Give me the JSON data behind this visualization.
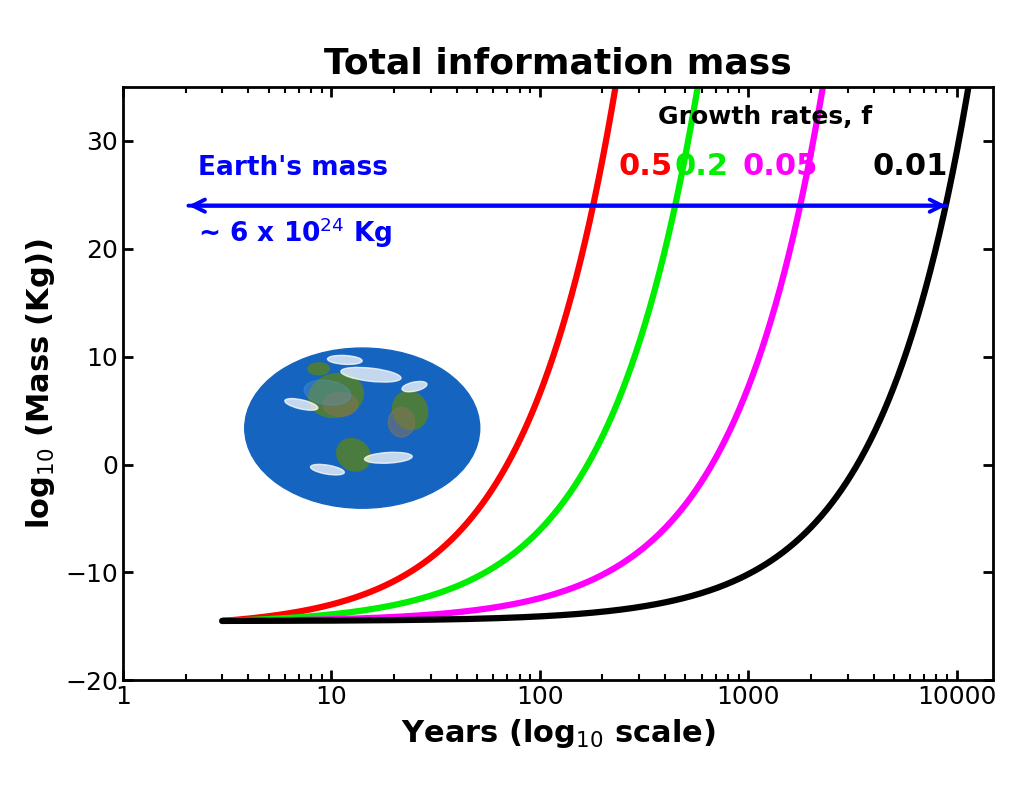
{
  "title": "Total information mass",
  "xlim": [
    1,
    15000
  ],
  "ylim": [
    -20,
    35
  ],
  "yticks": [
    -20,
    -10,
    0,
    10,
    20,
    30
  ],
  "xticks": [
    1,
    10,
    100,
    1000,
    10000
  ],
  "growth_rates": [
    0.5,
    0.2,
    0.05,
    0.01
  ],
  "colors": [
    "red",
    "#00ee00",
    "magenta",
    "#000000"
  ],
  "rate_labels": [
    "0.5",
    "0.2",
    "0.05",
    "0.01"
  ],
  "rate_label_colors": [
    "red",
    "#00ee00",
    "magenta",
    "black"
  ],
  "M0_log": -14.5,
  "t_start": 3.0,
  "earth_mass_y": 24.0,
  "line_width": 4.5,
  "title_fontsize": 26,
  "label_fontsize": 22,
  "tick_fontsize": 18,
  "rate_header_fontsize": 18,
  "rate_val_fontsize": 22,
  "earth_text_fontsize": 19,
  "earth_value_fontsize": 19
}
